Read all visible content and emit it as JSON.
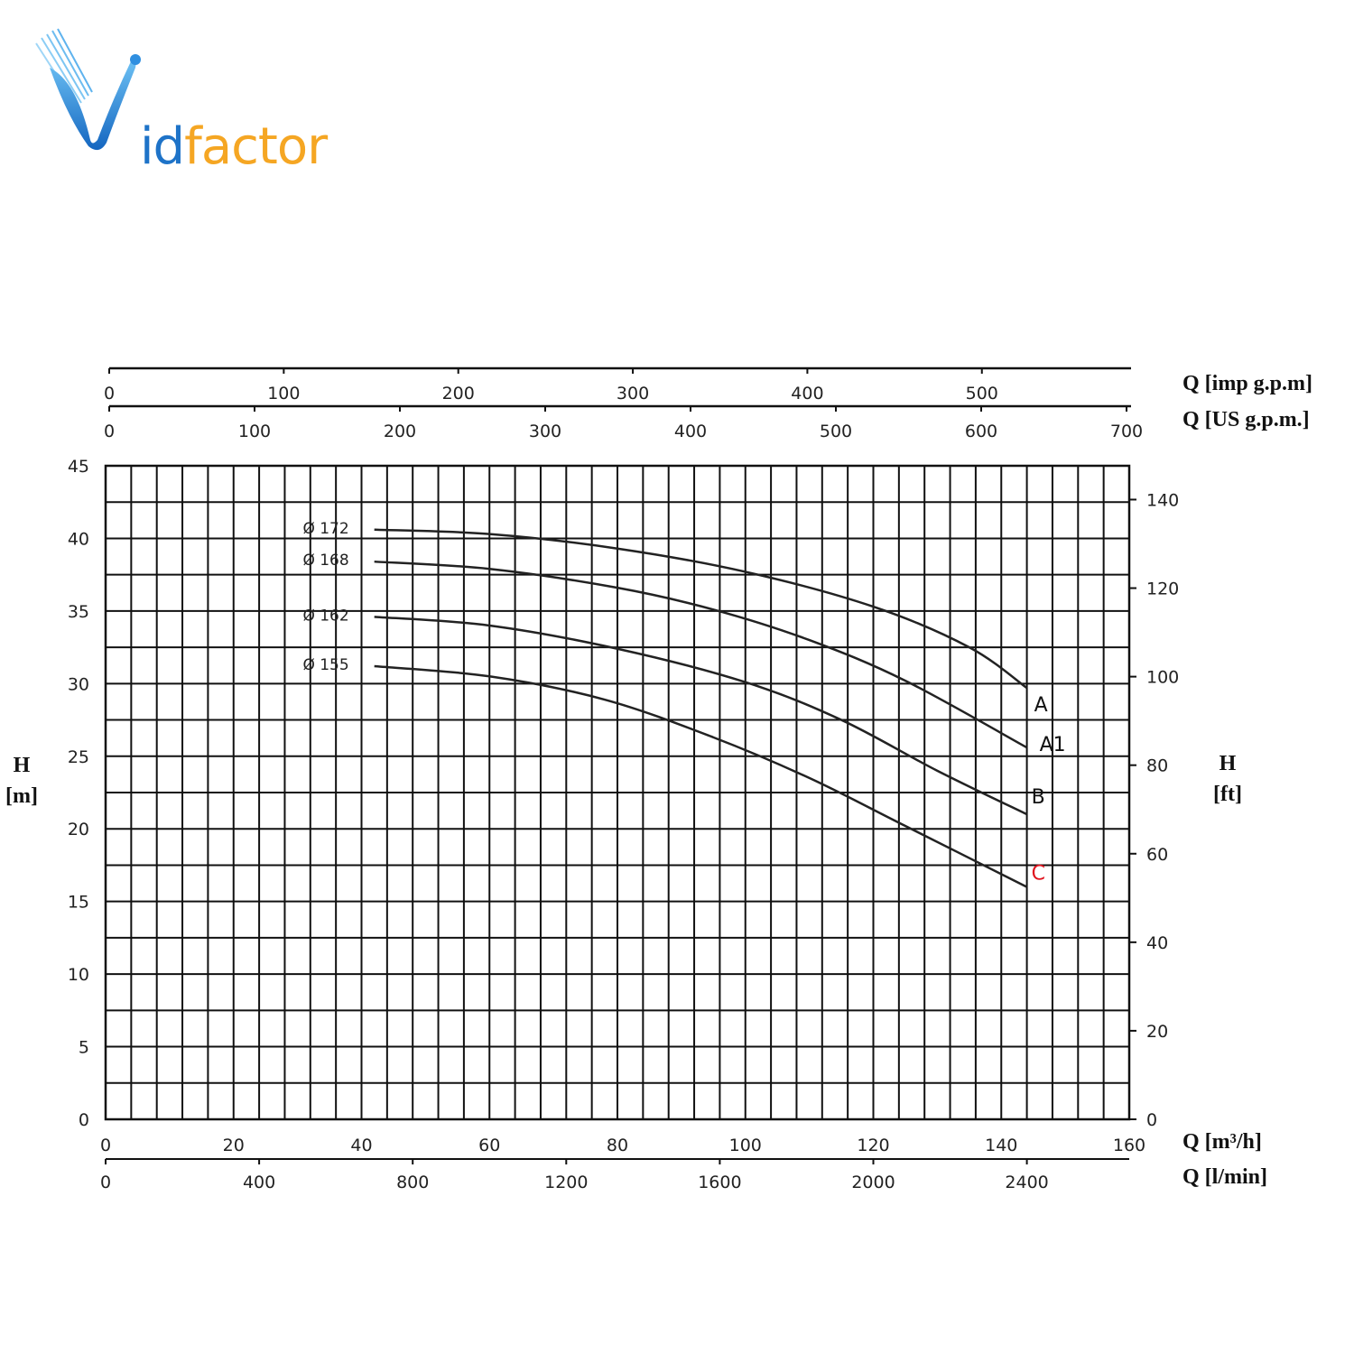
{
  "logo": {
    "text_first": "id",
    "text_rest": "factor",
    "color_blue": "#1e73c8",
    "color_orange": "#f5a623"
  },
  "chart_data": {
    "type": "line",
    "title": "",
    "xlabel": "Q [m³/h]",
    "ylabel_left": "H [m]",
    "ylabel_right": "H [ft]",
    "x_axis": {
      "label": "Q [m³/h]",
      "range": [
        0,
        160
      ],
      "ticks": [
        "0",
        "20",
        "40",
        "60",
        "80",
        "100",
        "120",
        "140",
        "160"
      ]
    },
    "x_axis_lmin": {
      "label": "Q [l/min]",
      "ticks": [
        "0",
        "400",
        "800",
        "1200",
        "1600",
        "2000",
        "2400"
      ],
      "tick_values": [
        0,
        400,
        800,
        1200,
        1600,
        2000,
        2400
      ]
    },
    "x_axis_usgpm": {
      "label": "Q [US g.p.m.]",
      "ticks": [
        "0",
        "100",
        "200",
        "300",
        "400",
        "500",
        "600",
        "700"
      ],
      "tick_values": [
        0,
        100,
        200,
        300,
        400,
        500,
        600,
        700
      ]
    },
    "x_axis_impgpm": {
      "label": "Q [imp g.p.m]",
      "ticks": [
        "0",
        "100",
        "200",
        "300",
        "400",
        "500"
      ],
      "tick_values": [
        0,
        100,
        200,
        300,
        400,
        500
      ]
    },
    "y_axis": {
      "label": "H [m]",
      "range": [
        0,
        45
      ],
      "ticks": [
        "0",
        "5",
        "10",
        "15",
        "20",
        "25",
        "30",
        "35",
        "40",
        "45"
      ]
    },
    "y_axis_ft": {
      "label": "H [ft]",
      "ticks": [
        "0",
        "20",
        "40",
        "60",
        "80",
        "100",
        "120",
        "140"
      ],
      "tick_values": [
        0,
        20,
        40,
        60,
        80,
        100,
        120,
        140
      ]
    },
    "grid": true,
    "series": [
      {
        "name": "Ø 172",
        "end_label": "A",
        "color": "#222222",
        "label_color": "#111111",
        "points": [
          [
            42,
            40.6
          ],
          [
            60,
            40.3
          ],
          [
            80,
            39.3
          ],
          [
            100,
            37.7
          ],
          [
            120,
            35.3
          ],
          [
            135,
            32.5
          ],
          [
            144,
            29.7
          ]
        ]
      },
      {
        "name": "Ø 168",
        "end_label": "A1",
        "color": "#222222",
        "label_color": "#111111",
        "points": [
          [
            42,
            38.4
          ],
          [
            60,
            37.9
          ],
          [
            80,
            36.6
          ],
          [
            95,
            35.1
          ],
          [
            110,
            33.0
          ],
          [
            125,
            30.2
          ],
          [
            144,
            25.6
          ]
        ]
      },
      {
        "name": "Ø 162",
        "end_label": "B",
        "color": "#222222",
        "label_color": "#111111",
        "points": [
          [
            42,
            34.6
          ],
          [
            60,
            34.0
          ],
          [
            80,
            32.4
          ],
          [
            100,
            30.1
          ],
          [
            115,
            27.5
          ],
          [
            130,
            24.0
          ],
          [
            144,
            21.0
          ]
        ]
      },
      {
        "name": "Ø 155",
        "end_label": "C",
        "color": "#222222",
        "label_color": "#e0141e",
        "points": [
          [
            42,
            31.2
          ],
          [
            60,
            30.5
          ],
          [
            78,
            28.9
          ],
          [
            95,
            26.3
          ],
          [
            110,
            23.5
          ],
          [
            125,
            20.2
          ],
          [
            144,
            16.0
          ]
        ]
      }
    ]
  }
}
